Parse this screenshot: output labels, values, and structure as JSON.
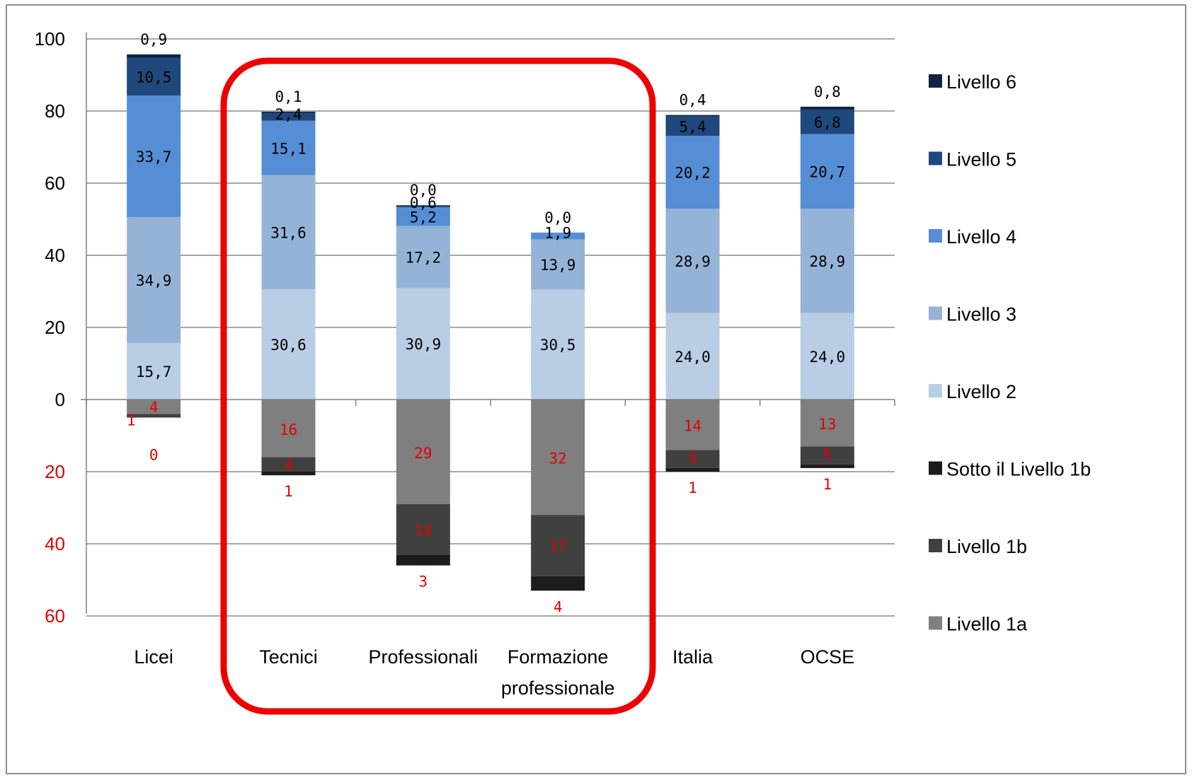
{
  "chart_data": {
    "type": "bar",
    "stacked": true,
    "diverging": true,
    "categories": [
      [
        "Licei"
      ],
      [
        "Tecnici"
      ],
      [
        "Professionali"
      ],
      [
        "Formazione",
        "professionale"
      ],
      [
        "Italia"
      ],
      [
        "OCSE"
      ]
    ],
    "y_ticks_positive": [
      "0",
      "20",
      "40",
      "60",
      "80",
      "100"
    ],
    "y_ticks_negative": [
      "20",
      "40",
      "60"
    ],
    "ylim": [
      -60,
      100
    ],
    "grid": true,
    "legend_position": "right",
    "positive_series": [
      {
        "name": "Livello 2",
        "color": "#b9cde5",
        "values": [
          15.7,
          30.6,
          30.9,
          30.5,
          24.0,
          24.0
        ],
        "labels": [
          "15,7",
          "30,6",
          "30,9",
          "30,5",
          "24,0",
          "24,0"
        ]
      },
      {
        "name": "Livello 3",
        "color": "#95b3d7",
        "values": [
          34.9,
          31.6,
          17.2,
          13.9,
          28.9,
          28.9
        ],
        "labels": [
          "34,9",
          "31,6",
          "17,2",
          "13,9",
          "28,9",
          "28,9"
        ]
      },
      {
        "name": "Livello 4",
        "color": "#558ed5",
        "values": [
          33.7,
          15.1,
          5.2,
          1.9,
          20.2,
          20.7
        ],
        "labels": [
          "33,7",
          "15,1",
          "5,2",
          "1,9",
          "20,2",
          "20,7"
        ]
      },
      {
        "name": "Livello 5",
        "color": "#1f497d",
        "values": [
          10.5,
          2.4,
          0.6,
          0.0,
          5.4,
          6.8
        ],
        "labels": [
          "10,5",
          "2,4",
          "0,6",
          "",
          "5,4",
          "6,8"
        ]
      },
      {
        "name": "Livello 6",
        "color": "#0f243e",
        "values": [
          0.9,
          0.1,
          0.0,
          0.0,
          0.4,
          0.8
        ],
        "labels": [
          "0,9",
          "0,1",
          "0,0",
          "0,0",
          "0,4",
          "0,8"
        ]
      }
    ],
    "negative_series": [
      {
        "name": "Livello 1a",
        "color": "#7f7f7f",
        "values": [
          4,
          16,
          29,
          32,
          14,
          13
        ],
        "labels": [
          "4",
          "16",
          "29",
          "32",
          "14",
          "13"
        ]
      },
      {
        "name": "Livello 1b",
        "color": "#404040",
        "values": [
          1,
          4,
          14,
          17,
          5,
          5
        ],
        "labels": [
          "1",
          "4",
          "14",
          "17",
          "5",
          "5"
        ]
      },
      {
        "name": "Sotto il Livello 1b",
        "color": "#1c1c1c",
        "values": [
          0,
          1,
          3,
          4,
          1,
          1
        ],
        "labels": [
          "0",
          "1",
          "3",
          "4",
          "1",
          "1"
        ]
      }
    ],
    "legend": [
      "Livello 6",
      "Livello 5",
      "Livello 4",
      "Livello 3",
      "Livello 2",
      "Sotto il Livello 1b",
      "Livello 1b",
      "Livello 1a"
    ],
    "highlight_box_color": "#ee0000"
  }
}
